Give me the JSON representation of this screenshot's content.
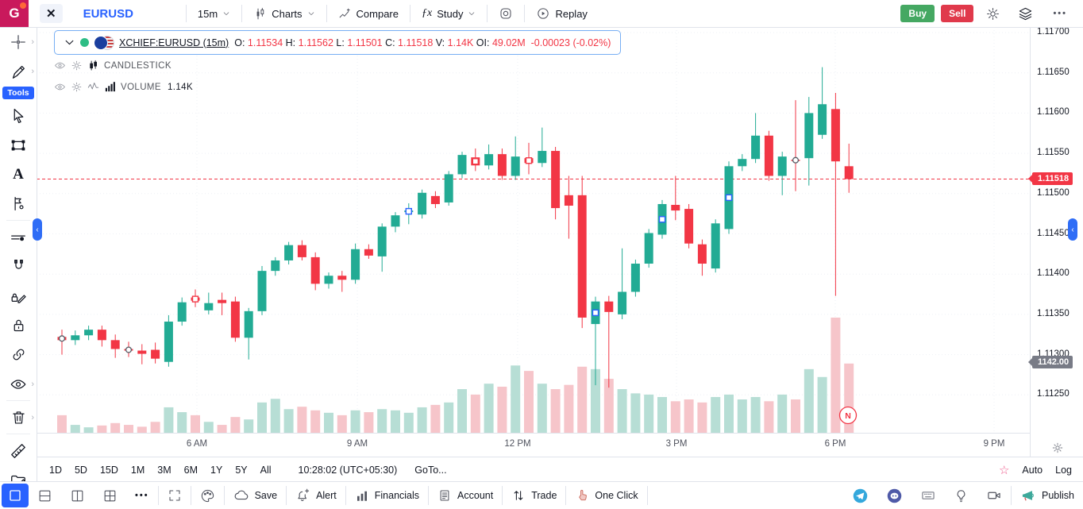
{
  "topbar": {
    "logo_letter": "G",
    "symbol": "EURUSD",
    "interval": "15m",
    "charts_label": "Charts",
    "compare_label": "Compare",
    "study_label": "Study",
    "replay_label": "Replay",
    "buy_label": "Buy",
    "sell_label": "Sell"
  },
  "icons": {
    "close": "✕",
    "dots": "•••",
    "fx": "ƒx",
    "star": "☆",
    "collapse": "‹"
  },
  "legend": {
    "symbol_text": "XCHIEF:EURUSD (15m)",
    "o_label": "O:",
    "o": "1.11534",
    "h_label": "H:",
    "h": "1.11562",
    "l_label": "L:",
    "l": "1.11501",
    "c_label": "C:",
    "c": "1.11518",
    "v_label": "V:",
    "v": "1.14K",
    "oi_label": "OI:",
    "oi": "49.02M",
    "change": "-0.00023",
    "change_pct": "(-0.02%)"
  },
  "indicators": [
    {
      "name": "CANDLESTICK",
      "value": ""
    },
    {
      "name": "VOLUME",
      "value": "1.14K"
    }
  ],
  "tools_badge": "Tools",
  "news_marker": "N",
  "price_axis": {
    "labels": [
      "1.11700",
      "1.11650",
      "1.11600",
      "1.11550",
      "1.11500",
      "1.11450",
      "1.11400",
      "1.11350",
      "1.11300",
      "1.11250"
    ],
    "last_price_tag": "1.11518",
    "volume_tag": "1142.00"
  },
  "time_axis": [
    "6 AM",
    "9 AM",
    "12 PM",
    "3 PM",
    "6 PM",
    "9 PM"
  ],
  "range_bar": {
    "ranges": [
      "1D",
      "5D",
      "15D",
      "1M",
      "3M",
      "6M",
      "1Y",
      "5Y",
      "All"
    ],
    "clock": "10:28:02 (UTC+05:30)",
    "goto": "GoTo...",
    "auto": "Auto",
    "log": "Log"
  },
  "bottom_toolbar": {
    "save": "Save",
    "alert": "Alert",
    "financials": "Financials",
    "account": "Account",
    "trade": "Trade",
    "one_click": "One Click",
    "publish": "Publish"
  },
  "colors": {
    "up": "#22ab94",
    "down": "#f23645",
    "vol_up": "#b7ded5",
    "vol_down": "#f6c5ca",
    "accent": "#2962ff",
    "buy": "#45a862",
    "sell": "#e0394b",
    "tag_gray": "#787b86",
    "grid": "#eef0f6",
    "dot_white_stroke": "#565a64"
  },
  "chart_data": {
    "type": "candlestick+volume",
    "title": "XCHIEF:EURUSD 15m",
    "ylabel": "price",
    "price_gridlines": [
      1.117,
      1.1165,
      1.116,
      1.1155,
      1.115,
      1.1145,
      1.114,
      1.1135,
      1.113,
      1.1125
    ],
    "x_ticks": [
      "6 AM",
      "9 AM",
      "12 PM",
      "3 PM",
      "6 PM",
      "9 PM"
    ],
    "last_price": 1.11518,
    "last_volume": 1142,
    "legend_position": "top-left",
    "grid": true,
    "candles": [
      {
        "t": "03:30",
        "o": 1.11322,
        "h": 1.11331,
        "l": 1.113,
        "c": 1.11318,
        "v": 290,
        "dot": "white"
      },
      {
        "t": "03:45",
        "o": 1.11318,
        "h": 1.1133,
        "l": 1.11312,
        "c": 1.11324,
        "v": 130
      },
      {
        "t": "04:00",
        "o": 1.11324,
        "h": 1.11336,
        "l": 1.11318,
        "c": 1.11331,
        "v": 90
      },
      {
        "t": "04:15",
        "o": 1.11331,
        "h": 1.11336,
        "l": 1.1131,
        "c": 1.11318,
        "v": 120
      },
      {
        "t": "04:30",
        "o": 1.11318,
        "h": 1.11325,
        "l": 1.11296,
        "c": 1.11307,
        "v": 160
      },
      {
        "t": "04:45",
        "o": 1.11307,
        "h": 1.11316,
        "l": 1.11297,
        "c": 1.11305,
        "v": 130,
        "dot": "white"
      },
      {
        "t": "05:00",
        "o": 1.11305,
        "h": 1.11313,
        "l": 1.11288,
        "c": 1.11301,
        "v": 100
      },
      {
        "t": "05:15",
        "o": 1.11306,
        "h": 1.11315,
        "l": 1.11289,
        "c": 1.11295,
        "v": 180
      },
      {
        "t": "05:30",
        "o": 1.11291,
        "h": 1.11349,
        "l": 1.11285,
        "c": 1.11341,
        "v": 420
      },
      {
        "t": "05:45",
        "o": 1.11341,
        "h": 1.11371,
        "l": 1.11336,
        "c": 1.11365,
        "v": 340
      },
      {
        "t": "06:00",
        "o": 1.11371,
        "h": 1.11381,
        "l": 1.11359,
        "c": 1.11367,
        "v": 290,
        "dot": "red"
      },
      {
        "t": "06:15",
        "o": 1.11355,
        "h": 1.11377,
        "l": 1.1135,
        "c": 1.11364,
        "v": 180
      },
      {
        "t": "06:30",
        "o": 1.11368,
        "h": 1.11377,
        "l": 1.11349,
        "c": 1.11364,
        "v": 130
      },
      {
        "t": "06:45",
        "o": 1.11366,
        "h": 1.11372,
        "l": 1.11316,
        "c": 1.11321,
        "v": 260
      },
      {
        "t": "07:00",
        "o": 1.11321,
        "h": 1.11358,
        "l": 1.11294,
        "c": 1.11354,
        "v": 220
      },
      {
        "t": "07:15",
        "o": 1.11354,
        "h": 1.1141,
        "l": 1.11349,
        "c": 1.11404,
        "v": 500
      },
      {
        "t": "07:30",
        "o": 1.11404,
        "h": 1.11421,
        "l": 1.11398,
        "c": 1.11417,
        "v": 560
      },
      {
        "t": "07:45",
        "o": 1.11417,
        "h": 1.1144,
        "l": 1.11412,
        "c": 1.11436,
        "v": 390
      },
      {
        "t": "08:00",
        "o": 1.11436,
        "h": 1.11442,
        "l": 1.11417,
        "c": 1.11421,
        "v": 430
      },
      {
        "t": "08:15",
        "o": 1.11421,
        "h": 1.11427,
        "l": 1.1138,
        "c": 1.11388,
        "v": 370
      },
      {
        "t": "08:30",
        "o": 1.11388,
        "h": 1.11402,
        "l": 1.11382,
        "c": 1.11398,
        "v": 330
      },
      {
        "t": "08:45",
        "o": 1.11398,
        "h": 1.11404,
        "l": 1.11378,
        "c": 1.11393,
        "v": 290
      },
      {
        "t": "09:00",
        "o": 1.11393,
        "h": 1.11438,
        "l": 1.11388,
        "c": 1.11431,
        "v": 370
      },
      {
        "t": "09:15",
        "o": 1.11431,
        "h": 1.11437,
        "l": 1.11419,
        "c": 1.11423,
        "v": 340
      },
      {
        "t": "09:30",
        "o": 1.11422,
        "h": 1.11463,
        "l": 1.11403,
        "c": 1.11459,
        "v": 390
      },
      {
        "t": "09:45",
        "o": 1.11459,
        "h": 1.11477,
        "l": 1.11452,
        "c": 1.11473,
        "v": 370
      },
      {
        "t": "10:00",
        "o": 1.11477,
        "h": 1.11488,
        "l": 1.11462,
        "c": 1.11479,
        "v": 330,
        "dot": "blue"
      },
      {
        "t": "10:15",
        "o": 1.11474,
        "h": 1.11505,
        "l": 1.11469,
        "c": 1.11501,
        "v": 420
      },
      {
        "t": "10:30",
        "o": 1.11497,
        "h": 1.11503,
        "l": 1.11482,
        "c": 1.11487,
        "v": 460
      },
      {
        "t": "10:45",
        "o": 1.11489,
        "h": 1.11528,
        "l": 1.11485,
        "c": 1.11524,
        "v": 500
      },
      {
        "t": "11:00",
        "o": 1.11524,
        "h": 1.11552,
        "l": 1.11519,
        "c": 1.11548,
        "v": 720
      },
      {
        "t": "11:15",
        "o": 1.11545,
        "h": 1.11556,
        "l": 1.11528,
        "c": 1.11535,
        "v": 630,
        "dot": "red"
      },
      {
        "t": "11:30",
        "o": 1.11535,
        "h": 1.11561,
        "l": 1.1153,
        "c": 1.11549,
        "v": 810
      },
      {
        "t": "11:45",
        "o": 1.11549,
        "h": 1.11556,
        "l": 1.11517,
        "c": 1.11522,
        "v": 760
      },
      {
        "t": "12:00",
        "o": 1.11522,
        "h": 1.11571,
        "l": 1.11517,
        "c": 1.11546,
        "v": 1110
      },
      {
        "t": "12:15",
        "o": 1.11544,
        "h": 1.11563,
        "l": 1.11524,
        "c": 1.11538,
        "v": 1020,
        "dot": "red"
      },
      {
        "t": "12:30",
        "o": 1.11538,
        "h": 1.11582,
        "l": 1.11533,
        "c": 1.11553,
        "v": 810
      },
      {
        "t": "12:45",
        "o": 1.11553,
        "h": 1.11558,
        "l": 1.11468,
        "c": 1.11482,
        "v": 720
      },
      {
        "t": "13:00",
        "o": 1.11498,
        "h": 1.11522,
        "l": 1.11444,
        "c": 1.11485,
        "v": 790
      },
      {
        "t": "13:15",
        "o": 1.11498,
        "h": 1.11522,
        "l": 1.11333,
        "c": 1.11346,
        "v": 1090
      },
      {
        "t": "13:30",
        "o": 1.11338,
        "h": 1.11372,
        "l": 1.11262,
        "c": 1.11366,
        "v": 1050,
        "dot": "blue"
      },
      {
        "t": "13:45",
        "o": 1.11366,
        "h": 1.11373,
        "l": 1.11259,
        "c": 1.11353,
        "v": 890
      },
      {
        "t": "14:00",
        "o": 1.1135,
        "h": 1.11432,
        "l": 1.11344,
        "c": 1.11378,
        "v": 720
      },
      {
        "t": "14:15",
        "o": 1.11378,
        "h": 1.11418,
        "l": 1.11372,
        "c": 1.11413,
        "v": 650
      },
      {
        "t": "14:30",
        "o": 1.11413,
        "h": 1.11456,
        "l": 1.11408,
        "c": 1.11451,
        "v": 630
      },
      {
        "t": "14:45",
        "o": 1.11449,
        "h": 1.11492,
        "l": 1.11444,
        "c": 1.11487,
        "v": 590,
        "dot": "blue"
      },
      {
        "t": "15:00",
        "o": 1.11486,
        "h": 1.11522,
        "l": 1.11467,
        "c": 1.11479,
        "v": 520
      },
      {
        "t": "15:15",
        "o": 1.11481,
        "h": 1.11487,
        "l": 1.11432,
        "c": 1.11438,
        "v": 550
      },
      {
        "t": "15:30",
        "o": 1.11437,
        "h": 1.11443,
        "l": 1.11398,
        "c": 1.11413,
        "v": 500
      },
      {
        "t": "15:45",
        "o": 1.11407,
        "h": 1.11468,
        "l": 1.11402,
        "c": 1.11463,
        "v": 590
      },
      {
        "t": "16:00",
        "o": 1.11456,
        "h": 1.1154,
        "l": 1.1145,
        "c": 1.11534,
        "v": 630,
        "dot": "blue"
      },
      {
        "t": "16:15",
        "o": 1.11534,
        "h": 1.11549,
        "l": 1.11528,
        "c": 1.11543,
        "v": 550
      },
      {
        "t": "16:30",
        "o": 1.11543,
        "h": 1.116,
        "l": 1.11538,
        "c": 1.11572,
        "v": 590
      },
      {
        "t": "16:45",
        "o": 1.11572,
        "h": 1.11578,
        "l": 1.11516,
        "c": 1.11522,
        "v": 520
      },
      {
        "t": "17:00",
        "o": 1.11522,
        "h": 1.11552,
        "l": 1.11498,
        "c": 1.11546,
        "v": 630
      },
      {
        "t": "17:15",
        "o": 1.11542,
        "h": 1.11616,
        "l": 1.11503,
        "c": 1.11541,
        "v": 550,
        "dot": "white"
      },
      {
        "t": "17:30",
        "o": 1.11544,
        "h": 1.1162,
        "l": 1.1151,
        "c": 1.116,
        "v": 1050
      },
      {
        "t": "17:45",
        "o": 1.11573,
        "h": 1.11657,
        "l": 1.11568,
        "c": 1.11611,
        "v": 920
      },
      {
        "t": "18:00",
        "o": 1.11605,
        "h": 1.11625,
        "l": 1.11373,
        "c": 1.1154,
        "v": 1900
      },
      {
        "t": "18:15",
        "o": 1.11534,
        "h": 1.11562,
        "l": 1.11501,
        "c": 1.11518,
        "v": 1142
      }
    ]
  }
}
